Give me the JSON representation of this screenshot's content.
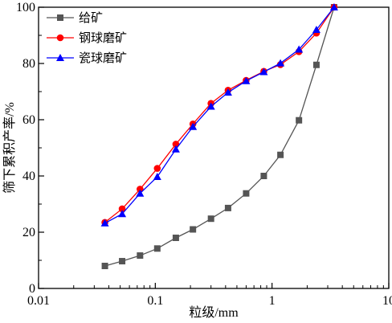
{
  "chart_data": {
    "type": "line",
    "xscale": "log",
    "xlim": [
      0.01,
      10
    ],
    "ylim": [
      0,
      100
    ],
    "xlabel": "粒级/mm",
    "ylabel": "筛下累积产率/%",
    "x_ticks": [
      {
        "value": 0.01,
        "label": "0.01"
      },
      {
        "value": 0.1,
        "label": "0.1"
      },
      {
        "value": 1,
        "label": "1"
      },
      {
        "value": 10,
        "label": "10"
      }
    ],
    "y_ticks": [
      {
        "value": 0,
        "label": "0"
      },
      {
        "value": 20,
        "label": "20"
      },
      {
        "value": 40,
        "label": "40"
      },
      {
        "value": 60,
        "label": "60"
      },
      {
        "value": 80,
        "label": "80"
      },
      {
        "value": 100,
        "label": "100"
      }
    ],
    "legend_position": "top-left",
    "series": [
      {
        "name": "给矿",
        "color": "#555555",
        "marker": "square",
        "x": [
          0.037,
          0.052,
          0.074,
          0.104,
          0.15,
          0.21,
          0.3,
          0.42,
          0.6,
          0.85,
          1.18,
          1.7,
          2.4,
          3.4
        ],
        "y": [
          8,
          9.7,
          11.7,
          14.2,
          18,
          21,
          24.8,
          28.6,
          33.8,
          40,
          47.5,
          59.8,
          79.5,
          100
        ]
      },
      {
        "name": "钢球磨矿",
        "color": "#ff0000",
        "marker": "circle",
        "x": [
          0.037,
          0.052,
          0.074,
          0.104,
          0.15,
          0.21,
          0.3,
          0.42,
          0.6,
          0.85,
          1.18,
          1.7,
          2.4,
          3.4
        ],
        "y": [
          23.5,
          28.3,
          35.3,
          42.7,
          51.3,
          58.5,
          65.8,
          70.5,
          74,
          77.2,
          79.6,
          84.2,
          90.8,
          100
        ]
      },
      {
        "name": "瓷球磨矿",
        "color": "#0000ff",
        "marker": "triangle",
        "x": [
          0.037,
          0.052,
          0.074,
          0.104,
          0.15,
          0.21,
          0.3,
          0.42,
          0.6,
          0.85,
          1.18,
          1.7,
          2.4,
          3.4
        ],
        "y": [
          23.2,
          26.5,
          33.8,
          39.7,
          49.5,
          57.5,
          64.7,
          69.7,
          73.8,
          77,
          80.1,
          85,
          92,
          100
        ]
      }
    ]
  }
}
